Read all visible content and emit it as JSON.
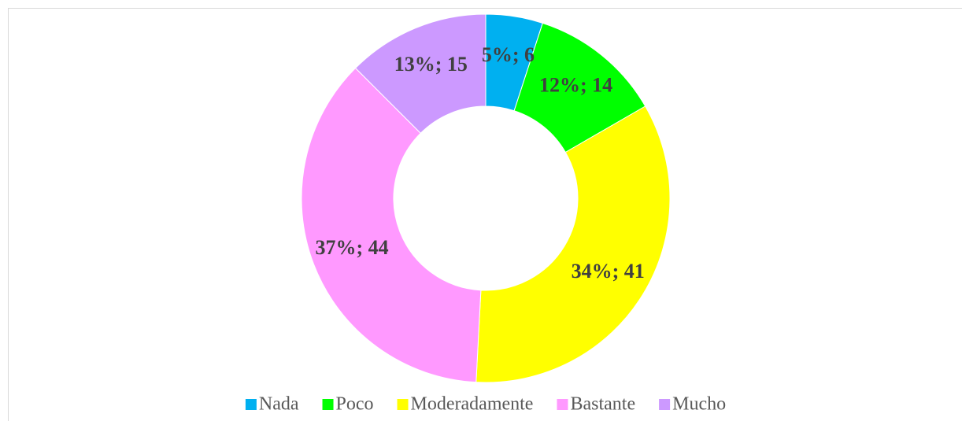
{
  "chart_data": {
    "type": "donut",
    "categories": [
      "Nada",
      "Poco",
      "Moderadamente",
      "Bastante",
      "Mucho"
    ],
    "values": [
      6,
      14,
      41,
      44,
      15
    ],
    "value_labels": [
      "5%; 6",
      "12%; 14",
      "34%; 41",
      "37%; 44",
      "13%; 15"
    ],
    "colors": [
      "#00b0f0",
      "#00ff00",
      "#ffff00",
      "#ff99ff",
      "#cc99ff"
    ],
    "legend": "bottom"
  }
}
